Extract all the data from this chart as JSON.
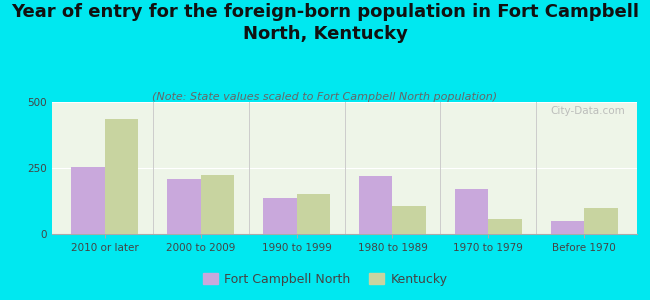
{
  "title": "Year of entry for the foreign-born population in Fort Campbell\nNorth, Kentucky",
  "subtitle": "(Note: State values scaled to Fort Campbell North population)",
  "categories": [
    "2010 or later",
    "2000 to 2009",
    "1990 to 1999",
    "1980 to 1989",
    "1970 to 1979",
    "Before 1970"
  ],
  "fort_campbell_values": [
    253,
    210,
    135,
    220,
    170,
    50
  ],
  "kentucky_values": [
    435,
    225,
    150,
    105,
    55,
    100
  ],
  "fort_color": "#c9a8dc",
  "kentucky_color": "#c8d4a0",
  "background_color": "#00e8f0",
  "plot_bg": "#eef5e8",
  "ylim": [
    0,
    500
  ],
  "yticks": [
    0,
    250,
    500
  ],
  "watermark": "City-Data.com",
  "legend_fort": "Fort Campbell North",
  "legend_kentucky": "Kentucky",
  "title_fontsize": 13,
  "subtitle_fontsize": 8,
  "tick_fontsize": 7.5,
  "legend_fontsize": 9,
  "bar_width": 0.35
}
